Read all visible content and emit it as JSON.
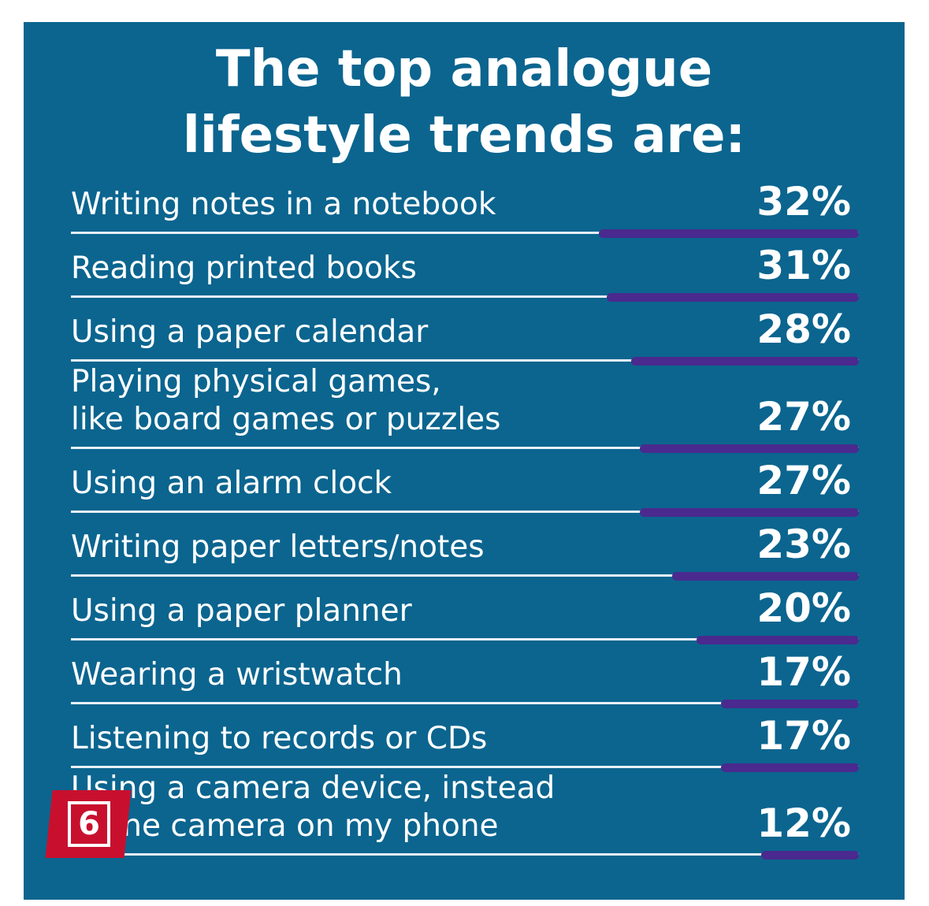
{
  "chart_data": {
    "type": "bar",
    "title": "The top analogue\nlifestyle trends are:",
    "categories": [
      "Writing notes in a notebook",
      "Reading printed books",
      "Using a paper calendar",
      "Playing physical games,\nlike board games or puzzles",
      "Using an alarm clock",
      "Writing paper letters/notes",
      "Using a paper planner",
      "Wearing a wristwatch",
      "Listening to records or CDs",
      "Using a camera device, instead\nof the camera on my phone"
    ],
    "values": [
      32,
      31,
      28,
      27,
      27,
      23,
      20,
      17,
      17,
      12
    ],
    "value_labels": [
      "32%",
      "31%",
      "28%",
      "27%",
      "27%",
      "23%",
      "20%",
      "17%",
      "17%",
      "12%"
    ],
    "color": "#4a2a8e",
    "badge": "6"
  }
}
